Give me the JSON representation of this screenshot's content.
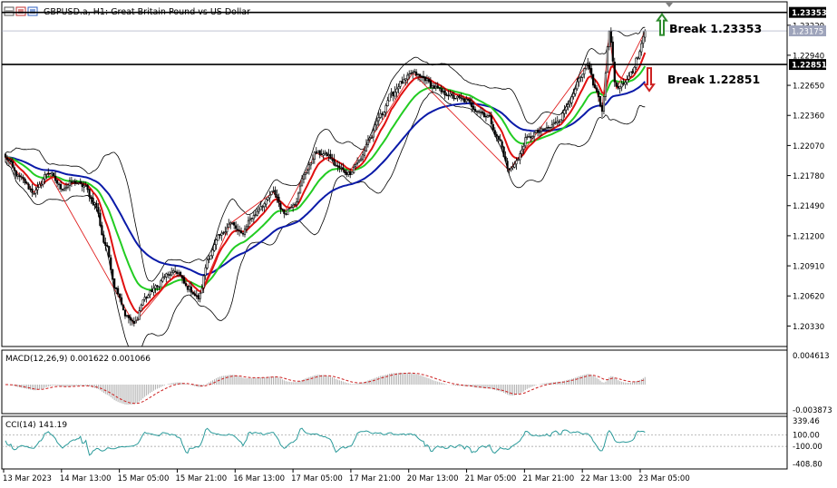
{
  "window": {
    "title": "GBPUSD.a, H1: Great Britain Pound vs US Dollar"
  },
  "annotations": {
    "break_up": "Break 1.23353",
    "break_down": "Break 1.22851"
  },
  "colors": {
    "background": "#ffffff",
    "bull_candle": "#000000",
    "bear_candle": "#000000",
    "ma_fast": "#e01010",
    "ma_mid": "#22cc22",
    "ma_slow": "#0a1aa8",
    "bollinger": "#000000",
    "zigzag": "#e02020",
    "arrow_up": "#2e8b2e",
    "arrow_down": "#cc2222",
    "macd_hist": "#b0b0b0",
    "macd_signal": "#cc2222",
    "cci": "#2a9a9a"
  },
  "chart_data": [
    {
      "type": "candlestick",
      "title": "GBPUSD.a, H1: Great Britain Pound vs US Dollar",
      "ylim": [
        1.2015,
        1.2342
      ],
      "y_ticks": [
        "1.20330",
        "1.20620",
        "1.20910",
        "1.21200",
        "1.21490",
        "1.21780",
        "1.22070",
        "1.22360",
        "1.22650",
        "1.22940",
        "1.23229"
      ],
      "x_ticks": [
        "13 Mar 2023",
        "14 Mar 13:00",
        "15 Mar 05:00",
        "15 Mar 21:00",
        "16 Mar 13:00",
        "17 Mar 05:00",
        "17 Mar 21:00",
        "20 Mar 13:00",
        "21 Mar 05:00",
        "21 Mar 21:00",
        "22 Mar 13:00",
        "23 Mar 05:00"
      ],
      "price_labels": [
        {
          "text": "1.23353",
          "value": 1.23353,
          "style": "dark"
        },
        {
          "text": "1.23175",
          "value": 1.23175,
          "style": "grey"
        },
        {
          "text": "1.22851",
          "value": 1.22851,
          "style": "dark"
        }
      ],
      "horizontal_lines": [
        1.23353,
        1.22851
      ],
      "current_price": 1.23175,
      "close_anchors": [
        [
          0,
          1.2195
        ],
        [
          8,
          1.2176
        ],
        [
          16,
          1.2162
        ],
        [
          24,
          1.2181
        ],
        [
          32,
          1.2166
        ],
        [
          38,
          1.2172
        ],
        [
          44,
          1.2168
        ],
        [
          50,
          1.2151
        ],
        [
          56,
          1.2111
        ],
        [
          62,
          1.2068
        ],
        [
          68,
          1.2042
        ],
        [
          72,
          1.2035
        ],
        [
          78,
          1.206
        ],
        [
          84,
          1.207
        ],
        [
          90,
          1.2082
        ],
        [
          96,
          1.2085
        ],
        [
          102,
          1.207
        ],
        [
          108,
          1.206
        ],
        [
          114,
          1.21
        ],
        [
          120,
          1.212
        ],
        [
          126,
          1.2132
        ],
        [
          132,
          1.2122
        ],
        [
          138,
          1.2138
        ],
        [
          144,
          1.215
        ],
        [
          150,
          1.2162
        ],
        [
          156,
          1.2142
        ],
        [
          162,
          1.2152
        ],
        [
          168,
          1.2182
        ],
        [
          174,
          1.22
        ],
        [
          180,
          1.2198
        ],
        [
          186,
          1.2186
        ],
        [
          192,
          1.218
        ],
        [
          198,
          1.2192
        ],
        [
          204,
          1.2214
        ],
        [
          210,
          1.2236
        ],
        [
          216,
          1.2256
        ],
        [
          222,
          1.2268
        ],
        [
          228,
          1.2277
        ],
        [
          234,
          1.2272
        ],
        [
          240,
          1.2263
        ],
        [
          246,
          1.2257
        ],
        [
          252,
          1.2253
        ],
        [
          258,
          1.225
        ],
        [
          264,
          1.2241
        ],
        [
          270,
          1.2235
        ],
        [
          276,
          1.2213
        ],
        [
          282,
          1.2183
        ],
        [
          286,
          1.2192
        ],
        [
          292,
          1.2214
        ],
        [
          298,
          1.222
        ],
        [
          304,
          1.2224
        ],
        [
          310,
          1.2232
        ],
        [
          316,
          1.225
        ],
        [
          322,
          1.2272
        ],
        [
          326,
          1.2286
        ],
        [
          330,
          1.2262
        ],
        [
          334,
          1.2242
        ],
        [
          338,
          1.2315
        ],
        [
          342,
          1.2262
        ],
        [
          346,
          1.2265
        ],
        [
          350,
          1.2277
        ],
        [
          354,
          1.2292
        ],
        [
          358,
          1.2317
        ]
      ],
      "series": [
        {
          "name": "MA fast"
        },
        {
          "name": "MA mid"
        },
        {
          "name": "MA slow"
        },
        {
          "name": "Bollinger Bands"
        },
        {
          "name": "ZigZag"
        }
      ]
    },
    {
      "type": "bar",
      "title": "MACD(12,26,9) 0.001622 0.001066",
      "ylim": [
        -0.004,
        0.0048
      ],
      "y_ticks": [
        "0.004613",
        "-0.003873"
      ]
    },
    {
      "type": "line",
      "title": "CCI(14) 141.19",
      "ylim": [
        -460,
        390
      ],
      "y_ticks": [
        "339.46",
        "100.00",
        "-100.00",
        "-408.80"
      ],
      "levels": [
        100,
        -100
      ]
    }
  ]
}
